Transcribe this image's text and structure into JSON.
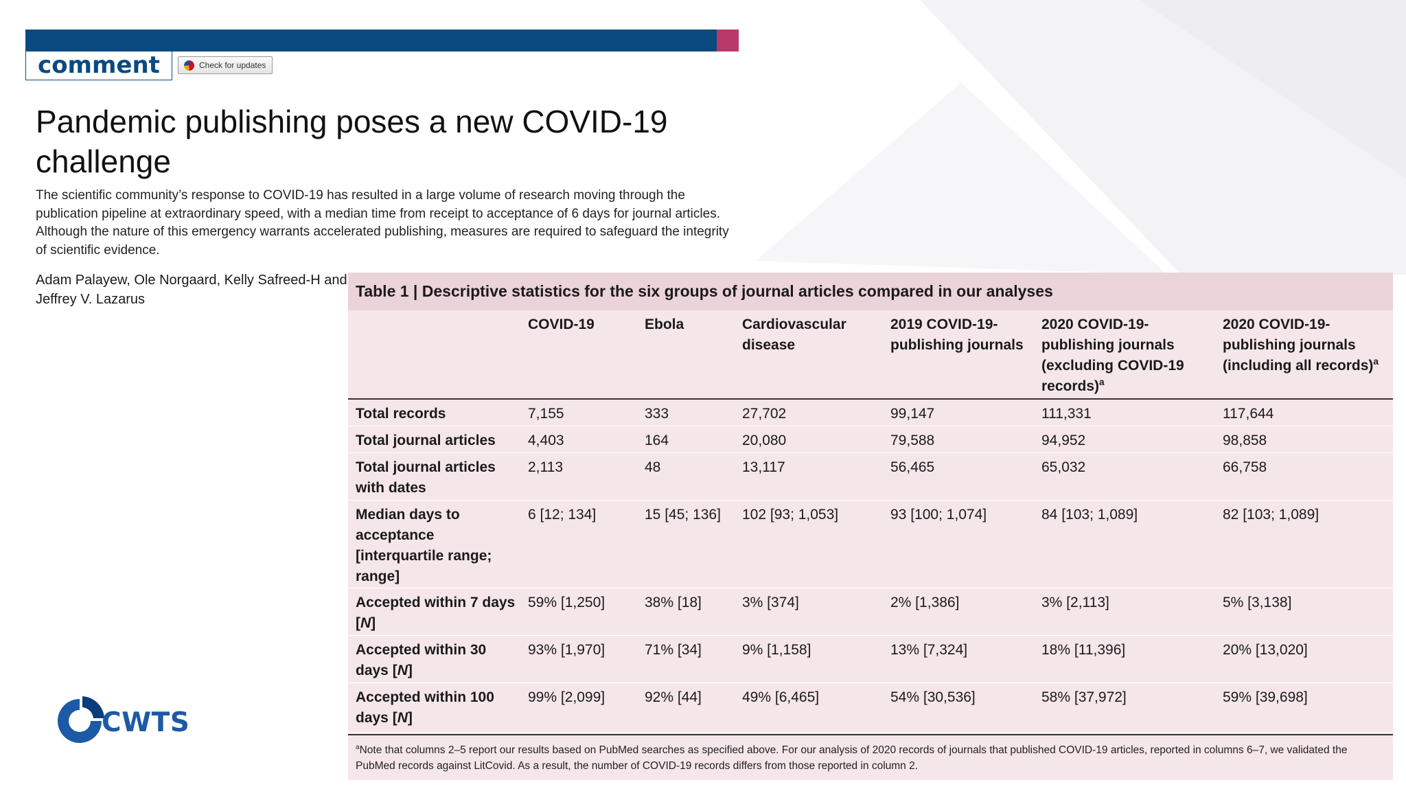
{
  "header": {
    "section": "comment",
    "updates_badge": "Check for updates",
    "colors": {
      "bar": "#0b4a80",
      "accent": "#b93a6a",
      "table_bg": "#f5e6ea",
      "caption_bg": "#ebd3da"
    }
  },
  "article": {
    "title": "Pandemic publishing poses a new COVID-19 challenge",
    "abstract": "The scientific community’s response to COVID-19 has resulted in a large volume of research moving through the publication pipeline at extraordinary speed, with a median time from receipt to acceptance of 6 days for journal articles. Although the nature of this emergency warrants accelerated publishing, measures are required to safeguard the integrity of scientific evidence.",
    "authors": "Adam Palayew, Ole Norgaard, Kelly Safreed-H and Jeffrey V. Lazarus"
  },
  "table": {
    "label": "Table 1 |",
    "caption": "Descriptive statistics for the six groups of journal articles compared in our analyses",
    "columns": [
      "",
      "COVID-19",
      "Ebola",
      "Cardiovascular disease",
      "2019 COVID-19-publishing journals",
      "2020 COVID-19-publishing journals (excluding COVID-19 records)",
      "2020 COVID-19-publishing journals (including all records)"
    ],
    "column_footnote_mark": "a",
    "rows": [
      {
        "label": "Total records",
        "values": [
          "7,155",
          "333",
          "27,702",
          "99,147",
          "111,331",
          "117,644"
        ]
      },
      {
        "label": "Total journal articles",
        "values": [
          "4,403",
          "164",
          "20,080",
          "79,588",
          "94,952",
          "98,858"
        ]
      },
      {
        "label": "Total journal articles with dates",
        "values": [
          "2,113",
          "48",
          "13,117",
          "56,465",
          "65,032",
          "66,758"
        ]
      },
      {
        "label": "Median days to acceptance [interquartile range; range]",
        "values": [
          "6 [12; 134]",
          "15 [45; 136]",
          "102 [93; 1,053]",
          "93 [100; 1,074]",
          "84 [103; 1,089]",
          "82 [103; 1,089]"
        ]
      },
      {
        "label": "Accepted within 7 days [",
        "label_italic": "N",
        "label_end": "]",
        "values": [
          "59% [1,250]",
          "38% [18]",
          "3% [374]",
          "2% [1,386]",
          "3% [2,113]",
          "5% [3,138]"
        ]
      },
      {
        "label": "Accepted within 30 days [",
        "label_italic": "N",
        "label_end": "]",
        "values": [
          "93% [1,970]",
          "71% [34]",
          "9% [1,158]",
          "13% [7,324]",
          "18% [11,396]",
          "20% [13,020]"
        ]
      },
      {
        "label": "Accepted within 100 days [",
        "label_italic": "N",
        "label_end": "]",
        "values": [
          "99% [2,099]",
          "92% [44]",
          "49% [6,465]",
          "54% [30,536]",
          "58% [37,972]",
          "59% [39,698]"
        ]
      }
    ],
    "footnote_mark": "a",
    "footnote": "Note that columns 2–5 report our results based on PubMed searches as specified above. For our analysis of 2020 records of journals that published COVID-19 articles, reported in columns 6–7, we validated the PubMed records against LitCovid. As a result, the number of COVID-19 records differs from those reported in column 2."
  },
  "logo": {
    "text": "CWTS",
    "icon": "cwts-logo-icon"
  }
}
